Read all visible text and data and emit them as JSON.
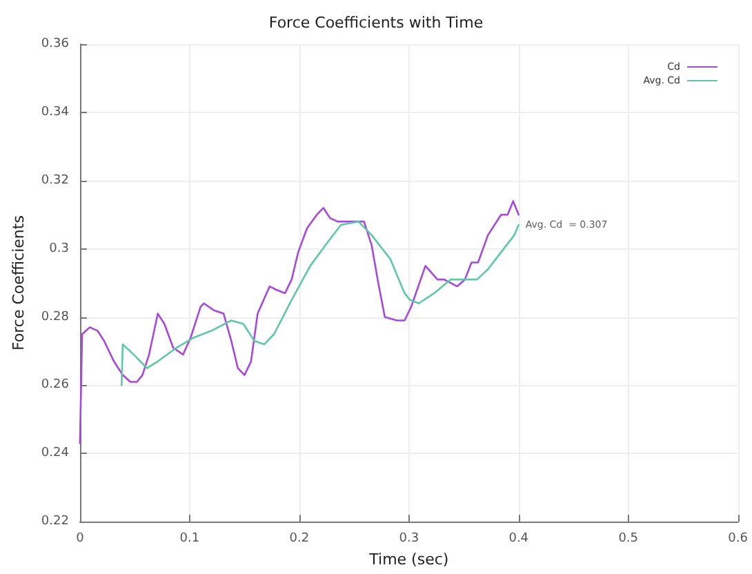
{
  "chart_data": {
    "type": "line",
    "title": "Force Coefficients with Time",
    "xlabel": "Time (sec)",
    "ylabel": "Force Coefficients",
    "xlim": [
      0,
      0.6
    ],
    "xticks": [
      0,
      0.1,
      0.2,
      0.3,
      0.4,
      0.5,
      0.6
    ],
    "ylim": [
      0.22,
      0.36
    ],
    "yticks": [
      0.22,
      0.24,
      0.26,
      0.28,
      0.3,
      0.32,
      0.34,
      0.36
    ],
    "grid": true,
    "legend": "top right",
    "marker": "none",
    "line_style": "solid",
    "annotations": [
      {
        "text": "Avg. Cd  = 0.307",
        "x": 0.4,
        "y": 0.307
      }
    ],
    "series": [
      {
        "name": "Cd",
        "color": "#a648d8",
        "x": [
          0,
          0.002,
          0.009,
          0.016,
          0.022,
          0.031,
          0.039,
          0.046,
          0.052,
          0.057,
          0.063,
          0.071,
          0.077,
          0.085,
          0.094,
          0.101,
          0.11,
          0.113,
          0.122,
          0.131,
          0.138,
          0.144,
          0.15,
          0.156,
          0.162,
          0.173,
          0.179,
          0.187,
          0.193,
          0.199,
          0.207,
          0.216,
          0.222,
          0.228,
          0.235,
          0.246,
          0.259,
          0.266,
          0.272,
          0.278,
          0.289,
          0.296,
          0.302,
          0.315,
          0.326,
          0.332,
          0.344,
          0.351,
          0.357,
          0.363,
          0.372,
          0.384,
          0.39,
          0.395,
          0.4
        ],
        "values": [
          0.243,
          0.275,
          0.277,
          0.276,
          0.273,
          0.267,
          0.263,
          0.261,
          0.261,
          0.263,
          0.269,
          0.281,
          0.278,
          0.271,
          0.269,
          0.274,
          0.283,
          0.284,
          0.282,
          0.281,
          0.273,
          0.265,
          0.263,
          0.267,
          0.281,
          0.289,
          0.288,
          0.287,
          0.291,
          0.299,
          0.306,
          0.31,
          0.312,
          0.309,
          0.308,
          0.308,
          0.308,
          0.301,
          0.29,
          0.28,
          0.279,
          0.279,
          0.283,
          0.295,
          0.291,
          0.291,
          0.289,
          0.291,
          0.296,
          0.296,
          0.304,
          0.31,
          0.31,
          0.314,
          0.31
        ]
      },
      {
        "name": "Avg. Cd",
        "color": "#5ec7a6",
        "x": [
          0.038,
          0.039,
          0.049,
          0.061,
          0.071,
          0.088,
          0.104,
          0.12,
          0.138,
          0.149,
          0.159,
          0.168,
          0.177,
          0.193,
          0.21,
          0.226,
          0.238,
          0.254,
          0.266,
          0.283,
          0.296,
          0.301,
          0.309,
          0.323,
          0.338,
          0.351,
          0.362,
          0.372,
          0.384,
          0.396,
          0.4
        ],
        "values": [
          0.26,
          0.272,
          0.269,
          0.265,
          0.267,
          0.271,
          0.274,
          0.276,
          0.279,
          0.278,
          0.273,
          0.272,
          0.275,
          0.285,
          0.295,
          0.302,
          0.307,
          0.308,
          0.304,
          0.297,
          0.287,
          0.285,
          0.284,
          0.287,
          0.291,
          0.291,
          0.291,
          0.294,
          0.299,
          0.304,
          0.307
        ]
      }
    ]
  }
}
